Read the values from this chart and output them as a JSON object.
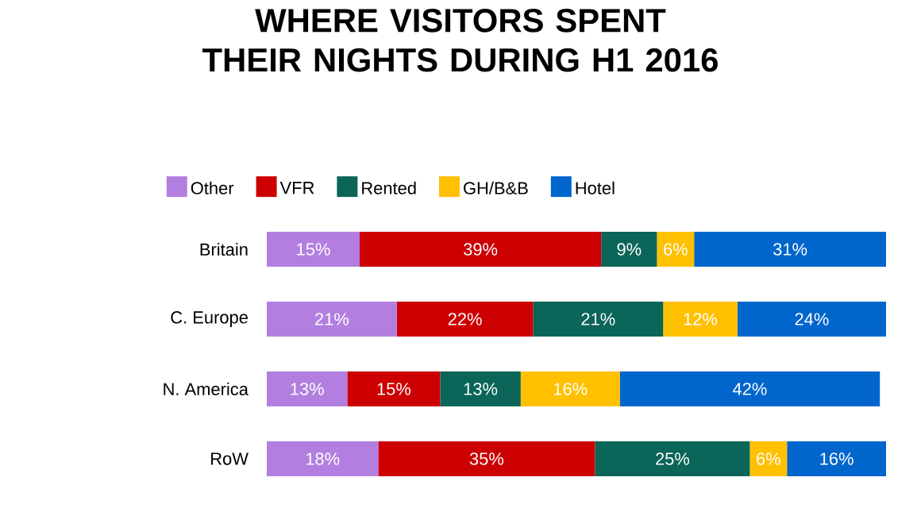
{
  "chart_data": {
    "type": "bar",
    "orientation": "horizontal",
    "stacked": true,
    "title": "WHERE VISITORS SPENT THEIR NIGHTS DURING H1 2016",
    "categories": [
      "Britain",
      "C. Europe",
      "N. America",
      "RoW"
    ],
    "legend": "top",
    "series": [
      {
        "name": "Other",
        "color": "#b27fe0",
        "values": [
          15,
          21,
          13,
          18
        ],
        "value_labels": [
          "15%",
          "21%",
          "13%",
          "18%"
        ]
      },
      {
        "name": "VFR",
        "color": "#cc0000",
        "values": [
          39,
          22,
          15,
          35
        ],
        "value_labels": [
          "39%",
          "22%",
          "15%",
          "35%"
        ]
      },
      {
        "name": "Rented",
        "color": "#0b6558",
        "values": [
          9,
          21,
          13,
          25
        ],
        "value_labels": [
          "9%",
          "21%",
          "13%",
          "25%"
        ]
      },
      {
        "name": "GH/B&B",
        "color": "#ffc000",
        "values": [
          6,
          12,
          16,
          6
        ],
        "value_labels": [
          "6%",
          "12%",
          "16%",
          "6%"
        ]
      },
      {
        "name": "Hotel",
        "color": "#0066cc",
        "values": [
          31,
          24,
          42,
          16
        ],
        "value_labels": [
          "31%",
          "24%",
          "42%",
          "16%"
        ]
      }
    ]
  }
}
